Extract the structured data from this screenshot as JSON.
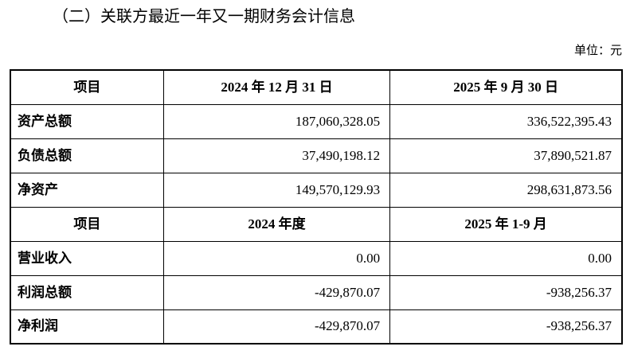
{
  "title": "（二）关联方最近一年又一期财务会计信息",
  "unit": "单位：元",
  "balance": {
    "headers": [
      "项目",
      "2024 年 12 月 31 日",
      "2025 年 9 月 30 日"
    ],
    "rows": [
      [
        "资产总额",
        "187,060,328.05",
        "336,522,395.43"
      ],
      [
        "负债总额",
        "37,490,198.12",
        "37,890,521.87"
      ],
      [
        "净资产",
        "149,570,129.93",
        "298,631,873.56"
      ]
    ]
  },
  "income": {
    "headers": [
      "项目",
      "2024 年度",
      "2025 年 1-9 月"
    ],
    "rows": [
      [
        "营业收入",
        "0.00",
        "0.00"
      ],
      [
        "利润总额",
        "-429,870.07",
        "-938,256.37"
      ],
      [
        "净利润",
        "-429,870.07",
        "-938,256.37"
      ]
    ]
  }
}
